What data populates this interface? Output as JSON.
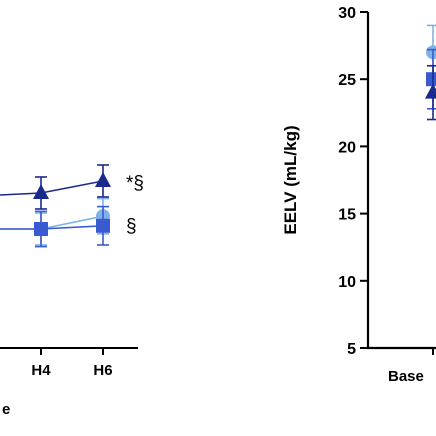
{
  "chart_data": [
    {
      "type": "line",
      "categories": [
        "H4",
        "H6"
      ],
      "xlabel": "e",
      "series": [
        {
          "values": [
            22.5,
            24.0
          ],
          "errors": [
            2.0,
            2.0
          ],
          "marker": "triangle",
          "color": "#1a2a8c"
        },
        {
          "values": [
            18.0,
            18.4
          ],
          "errors": [
            2.2,
            2.4
          ],
          "marker": "square",
          "color": "#3a5bd0"
        },
        {
          "values": [
            18.0,
            19.6
          ],
          "errors": [
            2.0,
            2.2
          ],
          "marker": "circle",
          "color": "#7fb2e5"
        }
      ],
      "annotations": [
        {
          "text": "*§",
          "category": "H6",
          "y": 24.0
        },
        {
          "text": "§",
          "category": "H6",
          "y": 19.6
        }
      ]
    },
    {
      "type": "scatter",
      "categories": [
        "Base"
      ],
      "ylabel": "EELV (mL/kg)",
      "ylim": [
        5,
        30
      ],
      "yticks": [
        5,
        10,
        15,
        20,
        25,
        30
      ],
      "series": [
        {
          "values": [
            24.0
          ],
          "errors": [
            2.0
          ],
          "marker": "triangle",
          "color": "#1a2a8c"
        },
        {
          "values": [
            25.0
          ],
          "errors": [
            2.2
          ],
          "marker": "square",
          "color": "#3a5bd0"
        },
        {
          "values": [
            27.0
          ],
          "errors": [
            2.0
          ],
          "marker": "circle",
          "color": "#7fb2e5"
        }
      ]
    }
  ]
}
